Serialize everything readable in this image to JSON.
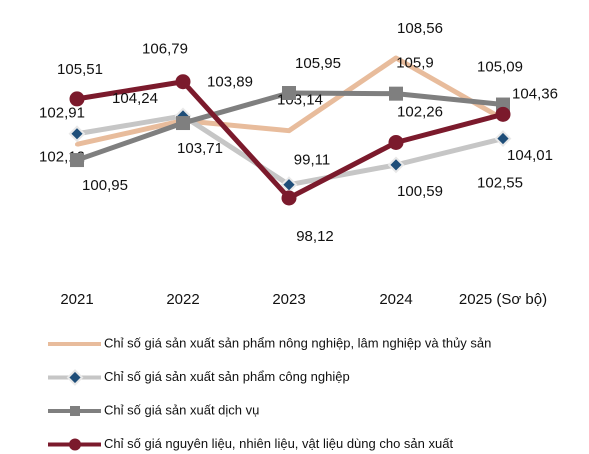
{
  "chart_data": {
    "type": "line",
    "categories": [
      "2021",
      "2022",
      "2023",
      "2024",
      "2025 (Sơ bộ)"
    ],
    "series": [
      {
        "name": "Chỉ số giá sản xuất sản phẩm nông nghiệp, lâm nghiệp và thủy sản",
        "color": "#e8bc9c",
        "marker": "none",
        "values": [
          102.12,
          103.89,
          103.14,
          108.56,
          104.01
        ],
        "value_labels": [
          "102,12",
          "103,89",
          "103,14",
          "108,56",
          "104,01"
        ]
      },
      {
        "name": "Chỉ số giá sản xuất sản phẩm công nghiệp",
        "color": "#c6c6c6",
        "marker": "diamond",
        "values": [
          102.91,
          104.24,
          99.11,
          100.59,
          102.55
        ],
        "value_labels": [
          "102,91",
          "104,24",
          "99,11",
          "100,59",
          "102,55"
        ]
      },
      {
        "name": "Chỉ số giá sản xuất dịch vụ",
        "color": "#7f7f7f",
        "marker": "square",
        "values": [
          100.95,
          103.71,
          105.95,
          105.9,
          105.09
        ],
        "value_labels": [
          "100,95",
          "103,71",
          "105,95",
          "105,9",
          "105,09"
        ]
      },
      {
        "name": "Chỉ số giá nguyên liệu, nhiên liệu, vật liệu dùng cho sản xuất",
        "color": "#7b1a2c",
        "marker": "circle",
        "values": [
          105.51,
          106.79,
          98.12,
          102.26,
          104.36
        ],
        "value_labels": [
          "105,51",
          "106,79",
          "98,12",
          "102,26",
          "104,36"
        ]
      }
    ]
  }
}
